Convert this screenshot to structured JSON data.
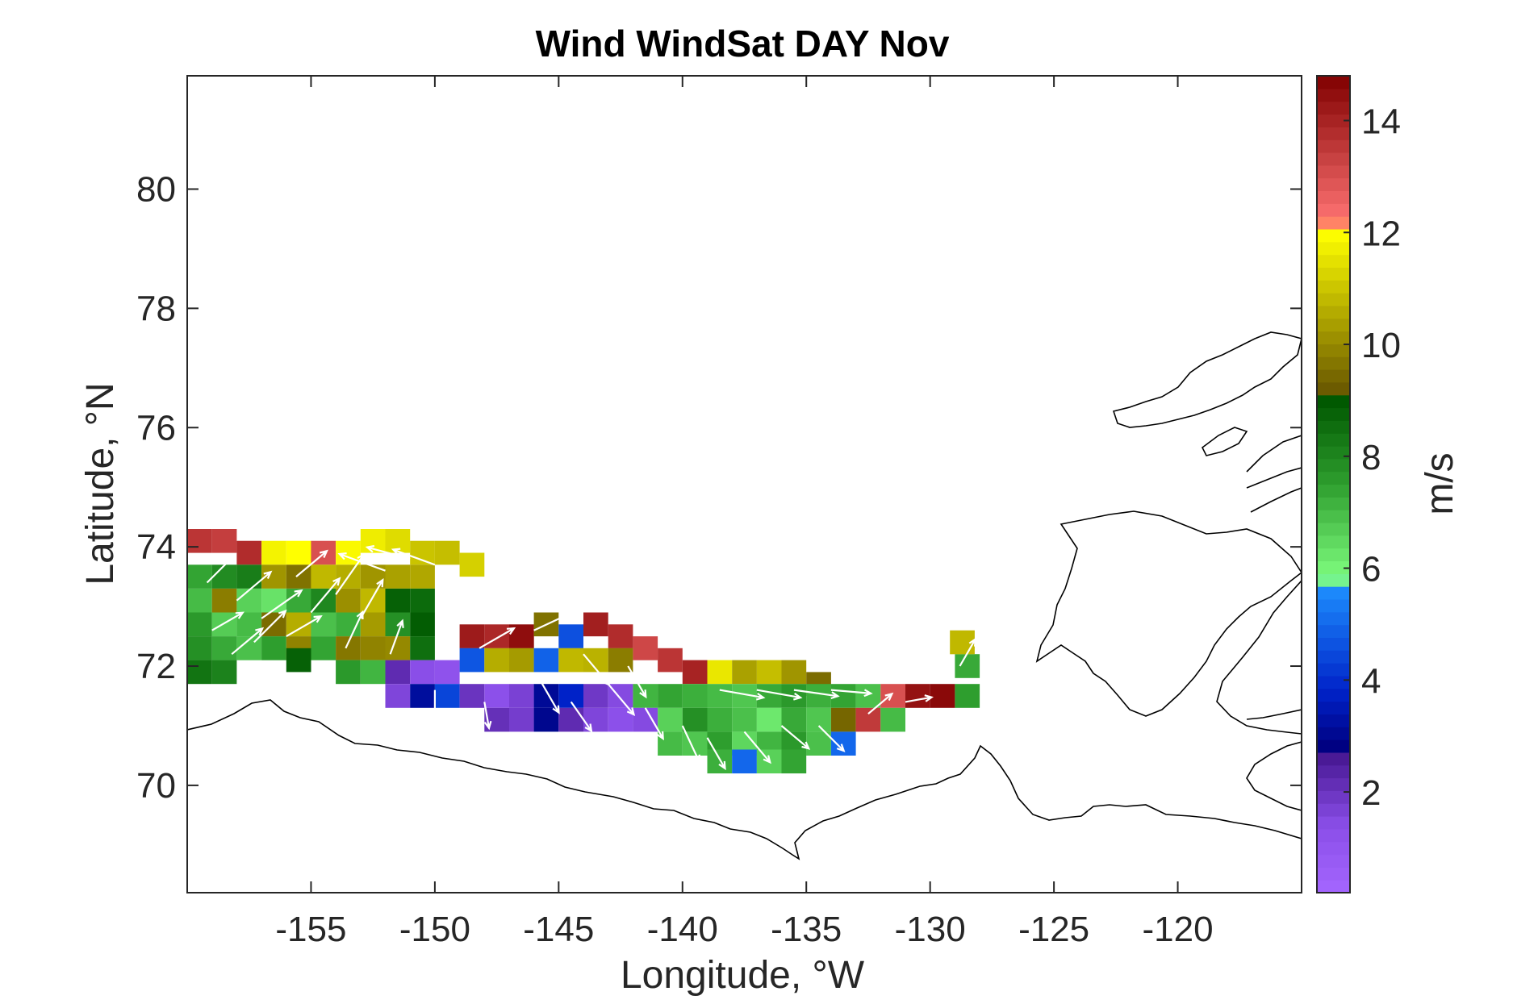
{
  "chart_data": {
    "type": "heatmap",
    "title": "Wind WindSat DAY Nov",
    "xlabel": "Longitude, °W",
    "ylabel": "Latitude, °N",
    "xlim": [
      -160,
      -115
    ],
    "ylim": [
      68.2,
      81.9
    ],
    "xticks": [
      -155,
      -150,
      -145,
      -140,
      -135,
      -130,
      -125,
      -120
    ],
    "yticks": [
      70,
      72,
      74,
      76,
      78,
      80
    ],
    "colorbar": {
      "label": "m/s",
      "range": [
        0.2,
        14.8
      ],
      "ticks": [
        2,
        4,
        6,
        8,
        10,
        12,
        14
      ],
      "color_stops": [
        {
          "v": 0.2,
          "color": "#a566ff"
        },
        {
          "v": 1.4,
          "color": "#8a4ee8"
        },
        {
          "v": 2.6,
          "color": "#4a1a96"
        },
        {
          "v": 2.8,
          "color": "#000080"
        },
        {
          "v": 3.8,
          "color": "#0022c8"
        },
        {
          "v": 5.7,
          "color": "#1e90ff"
        },
        {
          "v": 5.8,
          "color": "#80ff80"
        },
        {
          "v": 7.5,
          "color": "#2e9e2e"
        },
        {
          "v": 9.0,
          "color": "#005800"
        },
        {
          "v": 9.2,
          "color": "#6b5a00"
        },
        {
          "v": 12.0,
          "color": "#ffff00"
        },
        {
          "v": 12.2,
          "color": "#ff7373"
        },
        {
          "v": 14.8,
          "color": "#800000"
        }
      ]
    },
    "wind_speed_cells": [
      [
        -159.5,
        74.1,
        13.6
      ],
      [
        -158.5,
        74.1,
        13.4
      ],
      [
        -157.5,
        73.9,
        13.8
      ],
      [
        -156.5,
        73.9,
        11.8
      ],
      [
        -155.5,
        73.9,
        12.0
      ],
      [
        -154.5,
        73.9,
        13.0
      ],
      [
        -153.5,
        73.9,
        11.9
      ],
      [
        -152.5,
        74.1,
        11.7
      ],
      [
        -151.5,
        74.1,
        11.4
      ],
      [
        -150.5,
        73.9,
        11.0
      ],
      [
        -149.5,
        73.9,
        10.9
      ],
      [
        -148.5,
        73.7,
        11.2
      ],
      [
        -159.5,
        73.5,
        7.4
      ],
      [
        -158.5,
        73.5,
        7.9
      ],
      [
        -157.5,
        73.5,
        8.2
      ],
      [
        -156.5,
        73.5,
        10.2
      ],
      [
        -155.5,
        73.5,
        9.6
      ],
      [
        -154.5,
        73.5,
        10.8
      ],
      [
        -153.5,
        73.5,
        10.6
      ],
      [
        -152.5,
        73.5,
        10.2
      ],
      [
        -151.5,
        73.5,
        10.4
      ],
      [
        -150.5,
        73.5,
        10.5
      ],
      [
        -159.5,
        73.1,
        7.0
      ],
      [
        -158.5,
        73.1,
        9.8
      ],
      [
        -157.5,
        73.1,
        6.6
      ],
      [
        -156.5,
        73.1,
        6.3
      ],
      [
        -155.5,
        73.1,
        7.3
      ],
      [
        -154.5,
        73.1,
        8.0
      ],
      [
        -153.5,
        73.1,
        10.1
      ],
      [
        -152.5,
        73.1,
        10.8
      ],
      [
        -151.5,
        73.1,
        8.8
      ],
      [
        -150.5,
        73.1,
        8.6
      ],
      [
        -159.5,
        72.7,
        7.6
      ],
      [
        -158.5,
        72.7,
        6.7
      ],
      [
        -157.5,
        72.7,
        7.0
      ],
      [
        -156.5,
        72.7,
        9.5
      ],
      [
        -155.5,
        72.7,
        10.6
      ],
      [
        -154.5,
        72.7,
        6.9
      ],
      [
        -153.5,
        72.7,
        7.2
      ],
      [
        -152.5,
        72.7,
        10.3
      ],
      [
        -151.5,
        72.7,
        7.8
      ],
      [
        -150.5,
        72.7,
        8.9
      ],
      [
        -159.5,
        72.3,
        7.8
      ],
      [
        -158.5,
        72.3,
        7.3
      ],
      [
        -157.5,
        72.3,
        6.9
      ],
      [
        -156.5,
        72.3,
        7.5
      ],
      [
        -155.5,
        72.3,
        9.9
      ],
      [
        -154.5,
        72.3,
        7.4
      ],
      [
        -153.5,
        72.3,
        9.7
      ],
      [
        -152.5,
        72.3,
        9.9
      ],
      [
        -151.5,
        72.3,
        10.0
      ],
      [
        -150.5,
        72.3,
        8.5
      ],
      [
        -159.5,
        71.9,
        8.4
      ],
      [
        -158.5,
        71.9,
        8.1
      ],
      [
        -155.5,
        72.1,
        8.8
      ],
      [
        -153.5,
        71.9,
        7.6
      ],
      [
        -152.5,
        71.9,
        7.1
      ],
      [
        -148.5,
        72.5,
        14.2
      ],
      [
        -147.5,
        72.5,
        13.9
      ],
      [
        -146.5,
        72.5,
        14.5
      ],
      [
        -145.5,
        72.7,
        9.6
      ],
      [
        -144.5,
        72.5,
        4.6
      ],
      [
        -143.5,
        72.7,
        14.1
      ],
      [
        -142.5,
        72.5,
        13.8
      ],
      [
        -141.5,
        72.3,
        13.2
      ],
      [
        -140.5,
        72.1,
        13.6
      ],
      [
        -139.5,
        71.9,
        14.0
      ],
      [
        -138.5,
        71.9,
        11.6
      ],
      [
        -137.5,
        71.9,
        10.4
      ],
      [
        -136.5,
        71.9,
        10.9
      ],
      [
        -135.5,
        71.9,
        10.2
      ],
      [
        -134.5,
        71.7,
        9.5
      ],
      [
        -151.5,
        71.9,
        2.2
      ],
      [
        -150.5,
        71.9,
        1.4
      ],
      [
        -149.5,
        71.9,
        1.2
      ],
      [
        -148.5,
        72.1,
        4.7
      ],
      [
        -147.5,
        72.1,
        10.6
      ],
      [
        -146.5,
        72.1,
        10.3
      ],
      [
        -145.5,
        72.1,
        4.9
      ],
      [
        -144.5,
        72.1,
        10.8
      ],
      [
        -143.5,
        72.1,
        10.7
      ],
      [
        -142.5,
        72.1,
        9.8
      ],
      [
        -151.5,
        71.5,
        1.6
      ],
      [
        -150.5,
        71.5,
        3.2
      ],
      [
        -149.5,
        71.5,
        4.4
      ],
      [
        -148.5,
        71.5,
        2.0
      ],
      [
        -147.5,
        71.5,
        1.3
      ],
      [
        -146.5,
        71.5,
        1.7
      ],
      [
        -145.5,
        71.5,
        3.1
      ],
      [
        -144.5,
        71.5,
        3.8
      ],
      [
        -143.5,
        71.5,
        1.9
      ],
      [
        -142.5,
        71.5,
        1.5
      ],
      [
        -141.5,
        71.5,
        7.1
      ],
      [
        -140.5,
        71.5,
        7.4
      ],
      [
        -139.5,
        71.5,
        7.2
      ],
      [
        -138.5,
        71.5,
        7.0
      ],
      [
        -137.5,
        71.5,
        6.8
      ],
      [
        -136.5,
        71.5,
        7.3
      ],
      [
        -135.5,
        71.5,
        7.6
      ],
      [
        -134.5,
        71.5,
        7.2
      ],
      [
        -133.5,
        71.5,
        7.4
      ],
      [
        -132.5,
        71.5,
        6.9
      ],
      [
        -131.5,
        71.5,
        13.0
      ],
      [
        -130.5,
        71.5,
        14.4
      ],
      [
        -129.5,
        71.5,
        14.6
      ],
      [
        -128.5,
        71.5,
        7.5
      ],
      [
        -128.5,
        72.0,
        7.3
      ],
      [
        -128.7,
        72.4,
        10.8
      ],
      [
        -147.5,
        71.1,
        2.1
      ],
      [
        -146.5,
        71.1,
        1.8
      ],
      [
        -145.5,
        71.1,
        3.0
      ],
      [
        -144.5,
        71.1,
        2.2
      ],
      [
        -143.5,
        71.1,
        1.6
      ],
      [
        -142.5,
        71.1,
        1.3
      ],
      [
        -141.5,
        71.1,
        1.5
      ],
      [
        -140.5,
        71.1,
        6.6
      ],
      [
        -139.5,
        71.1,
        7.8
      ],
      [
        -138.5,
        71.1,
        7.2
      ],
      [
        -137.5,
        71.1,
        6.9
      ],
      [
        -136.5,
        71.1,
        6.2
      ],
      [
        -135.5,
        71.1,
        7.3
      ],
      [
        -134.5,
        71.1,
        6.8
      ],
      [
        -133.5,
        71.1,
        9.4
      ],
      [
        -132.5,
        71.1,
        13.5
      ],
      [
        -131.5,
        71.1,
        7.0
      ],
      [
        -140.5,
        70.7,
        7.0
      ],
      [
        -139.5,
        70.7,
        6.8
      ],
      [
        -138.5,
        70.7,
        7.5
      ],
      [
        -137.5,
        70.7,
        6.5
      ],
      [
        -136.5,
        70.7,
        7.1
      ],
      [
        -135.5,
        70.7,
        7.6
      ],
      [
        -134.5,
        70.7,
        6.9
      ],
      [
        -133.5,
        70.7,
        5.0
      ],
      [
        -138.5,
        70.4,
        7.2
      ],
      [
        -137.5,
        70.4,
        5.0
      ],
      [
        -136.5,
        70.4,
        6.6
      ],
      [
        -135.5,
        70.4,
        7.4
      ]
    ],
    "wind_vectors": [
      [
        -159.2,
        73.4,
        45,
        0.9
      ],
      [
        -158.0,
        73.1,
        40,
        1.0
      ],
      [
        -157.0,
        72.8,
        35,
        1.1
      ],
      [
        -156.0,
        72.5,
        30,
        0.9
      ],
      [
        -155.0,
        72.9,
        50,
        1.0
      ],
      [
        -154.0,
        73.2,
        55,
        1.1
      ],
      [
        -153.0,
        72.8,
        60,
        1.0
      ],
      [
        -152.0,
        73.6,
        160,
        1.1
      ],
      [
        -151.0,
        73.8,
        165,
        1.0
      ],
      [
        -150.0,
        73.7,
        160,
        1.0
      ],
      [
        -159.0,
        72.6,
        30,
        0.8
      ],
      [
        -158.2,
        72.2,
        40,
        0.9
      ],
      [
        -157.3,
        72.4,
        45,
        1.0
      ],
      [
        -155.6,
        73.5,
        40,
        0.9
      ],
      [
        -153.6,
        72.3,
        65,
        0.9
      ],
      [
        -151.8,
        72.2,
        70,
        0.8
      ],
      [
        -148.2,
        72.3,
        30,
        0.9
      ],
      [
        -146.0,
        72.6,
        25,
        0.8
      ],
      [
        -144.0,
        72.2,
        310,
        0.9
      ],
      [
        -142.2,
        72.0,
        300,
        0.8
      ],
      [
        -150.0,
        71.6,
        270,
        0.6
      ],
      [
        -148.0,
        71.4,
        280,
        0.6
      ],
      [
        -145.8,
        71.8,
        300,
        0.9
      ],
      [
        -144.5,
        71.4,
        305,
        0.8
      ],
      [
        -143.0,
        71.7,
        310,
        0.9
      ],
      [
        -141.5,
        71.3,
        300,
        0.8
      ],
      [
        -140.0,
        71.0,
        295,
        0.9
      ],
      [
        -138.5,
        71.6,
        350,
        1.0
      ],
      [
        -137.0,
        71.6,
        350,
        1.0
      ],
      [
        -135.5,
        71.6,
        352,
        1.0
      ],
      [
        -134.0,
        71.6,
        355,
        0.9
      ],
      [
        -139.0,
        70.8,
        300,
        0.8
      ],
      [
        -137.5,
        70.9,
        310,
        0.9
      ],
      [
        -136.0,
        71.0,
        320,
        0.8
      ],
      [
        -134.5,
        71.0,
        315,
        0.8
      ],
      [
        -132.5,
        71.2,
        40,
        0.7
      ],
      [
        -131.0,
        71.4,
        10,
        0.6
      ],
      [
        -128.8,
        72.0,
        60,
        0.7
      ]
    ]
  }
}
